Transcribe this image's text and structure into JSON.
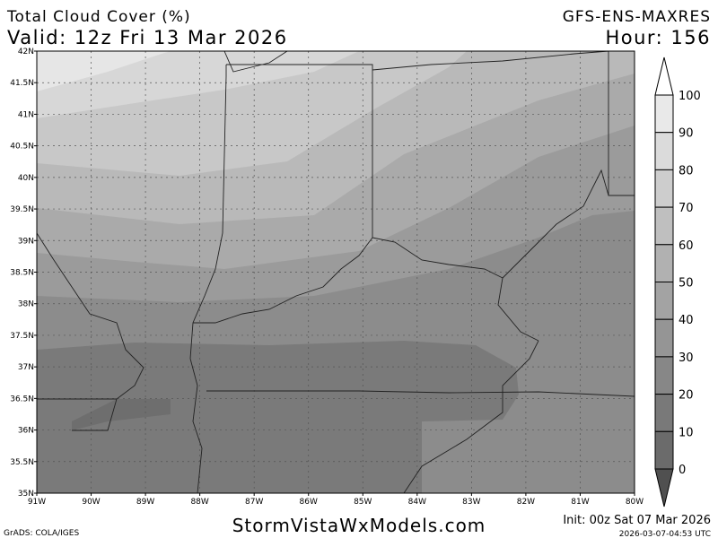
{
  "header": {
    "title": "Total Cloud Cover (%)",
    "valid": "Valid: 12z Fri 13 Mar 2026",
    "model": "GFS-ENS-MAXRES",
    "hour": "Hour: 156"
  },
  "map": {
    "lat_labels": [
      "42N",
      "41.5N",
      "41N",
      "40.5N",
      "40N",
      "39.5N",
      "39N",
      "38.5N",
      "38N",
      "37.5N",
      "37N",
      "36.5N",
      "36N",
      "35.5N",
      "35N"
    ],
    "lon_labels": [
      "91W",
      "90W",
      "89W",
      "88W",
      "87W",
      "86W",
      "85W",
      "84W",
      "83W",
      "82W",
      "81W",
      "80W"
    ]
  },
  "colorbar": {
    "levels": [
      100,
      90,
      80,
      70,
      60,
      50,
      40,
      30,
      20,
      10,
      0
    ]
  },
  "footer": {
    "credit": "GrADS: COLA/IGES",
    "site": "StormVistaWxModels.com",
    "init": "Init: 00z Sat 07 Mar 2026",
    "timestamp": "2026-03-07-04:53 UTC"
  }
}
